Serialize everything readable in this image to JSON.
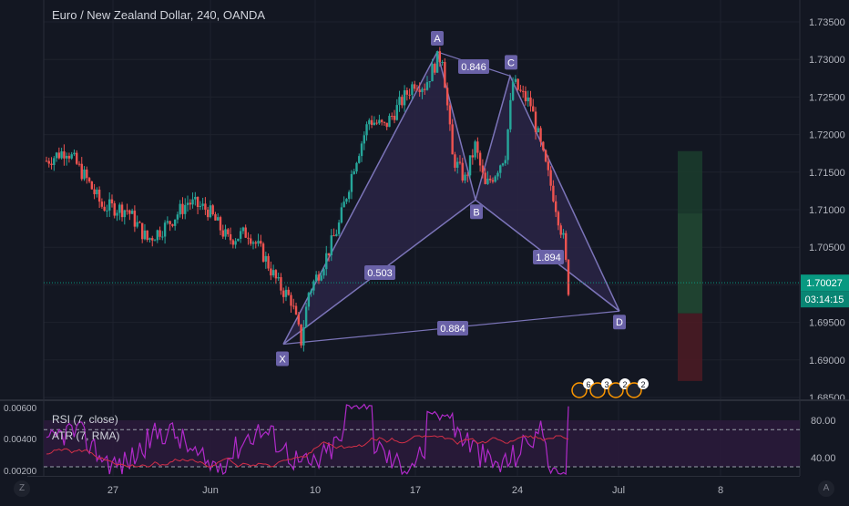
{
  "header": {
    "title": "Euro / New Zealand Dollar, 240, OANDA"
  },
  "oscillator": {
    "rsi_label": "RSI (7, close)",
    "atr_label": "ATR (7, RMA)"
  },
  "corner": {
    "left": "Z",
    "right": "A"
  },
  "colors": {
    "bg": "#131722",
    "up": "#26a69a",
    "down": "#ef5350",
    "pattern": "#7b74b8",
    "pattern_fill": "#2a2545",
    "rsi": "#b02ac9",
    "atr": "#d32f47",
    "price_tag": "#089981",
    "grid": "#1e222d"
  },
  "chart_data": {
    "type": "candlestick",
    "title": "Euro / New Zealand Dollar, 240, OANDA",
    "price_axis": {
      "ticks": [
        "1.73500",
        "1.73000",
        "1.72500",
        "1.72000",
        "1.71500",
        "1.71000",
        "1.70500",
        "1.70000",
        "1.69500",
        "1.69000",
        "1.68500"
      ],
      "ylim": [
        1.684,
        1.7365
      ]
    },
    "time_axis": {
      "ticks": [
        "27",
        "Jun",
        "10",
        "17",
        "24",
        "Jul",
        "8"
      ]
    },
    "current_price": "1.70027",
    "countdown": "03:14:15",
    "harmonic_pattern": {
      "points": [
        {
          "label": "X",
          "y": 1.6921
        },
        {
          "label": "A",
          "y": 1.731
        },
        {
          "label": "B",
          "y": 1.7113
        },
        {
          "label": "C",
          "y": 1.7278
        },
        {
          "label": "D",
          "y": 1.6965
        }
      ],
      "ratios": [
        "0.846",
        "0.503",
        "1.894",
        "0.884"
      ]
    },
    "position": {
      "target": 1.7178,
      "entry": 1.6962,
      "stop": 1.6872
    },
    "oscillator_axis": {
      "left_ticks": [
        "0.00600",
        "0.00400",
        "0.00200"
      ],
      "right_ticks": [
        "80.00",
        "40.00"
      ],
      "levels": [
        70,
        30
      ]
    },
    "events": [
      "6",
      "3",
      "2",
      "2"
    ]
  }
}
